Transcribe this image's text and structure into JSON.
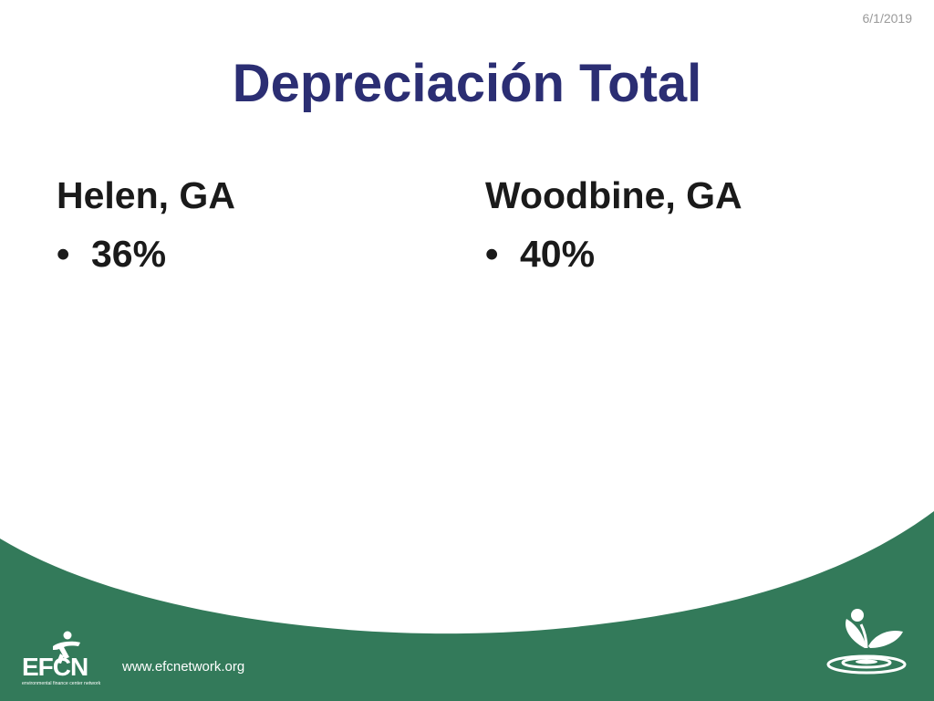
{
  "slide": {
    "date": "6/1/2019",
    "title": "Depreciación Total",
    "columns": [
      {
        "heading": "Helen, GA",
        "bullet": "36%"
      },
      {
        "heading": "Woodbine, GA",
        "bullet": "40%"
      }
    ],
    "bullet_glyph": "•"
  },
  "footer": {
    "url": "www.efcnetwork.org",
    "logo_text": "EFCN",
    "logo_tagline": "environmental finance center network"
  },
  "colors": {
    "title": "#2b2e73",
    "footer_green": "#337a5a",
    "text": "#1a1a1a"
  }
}
